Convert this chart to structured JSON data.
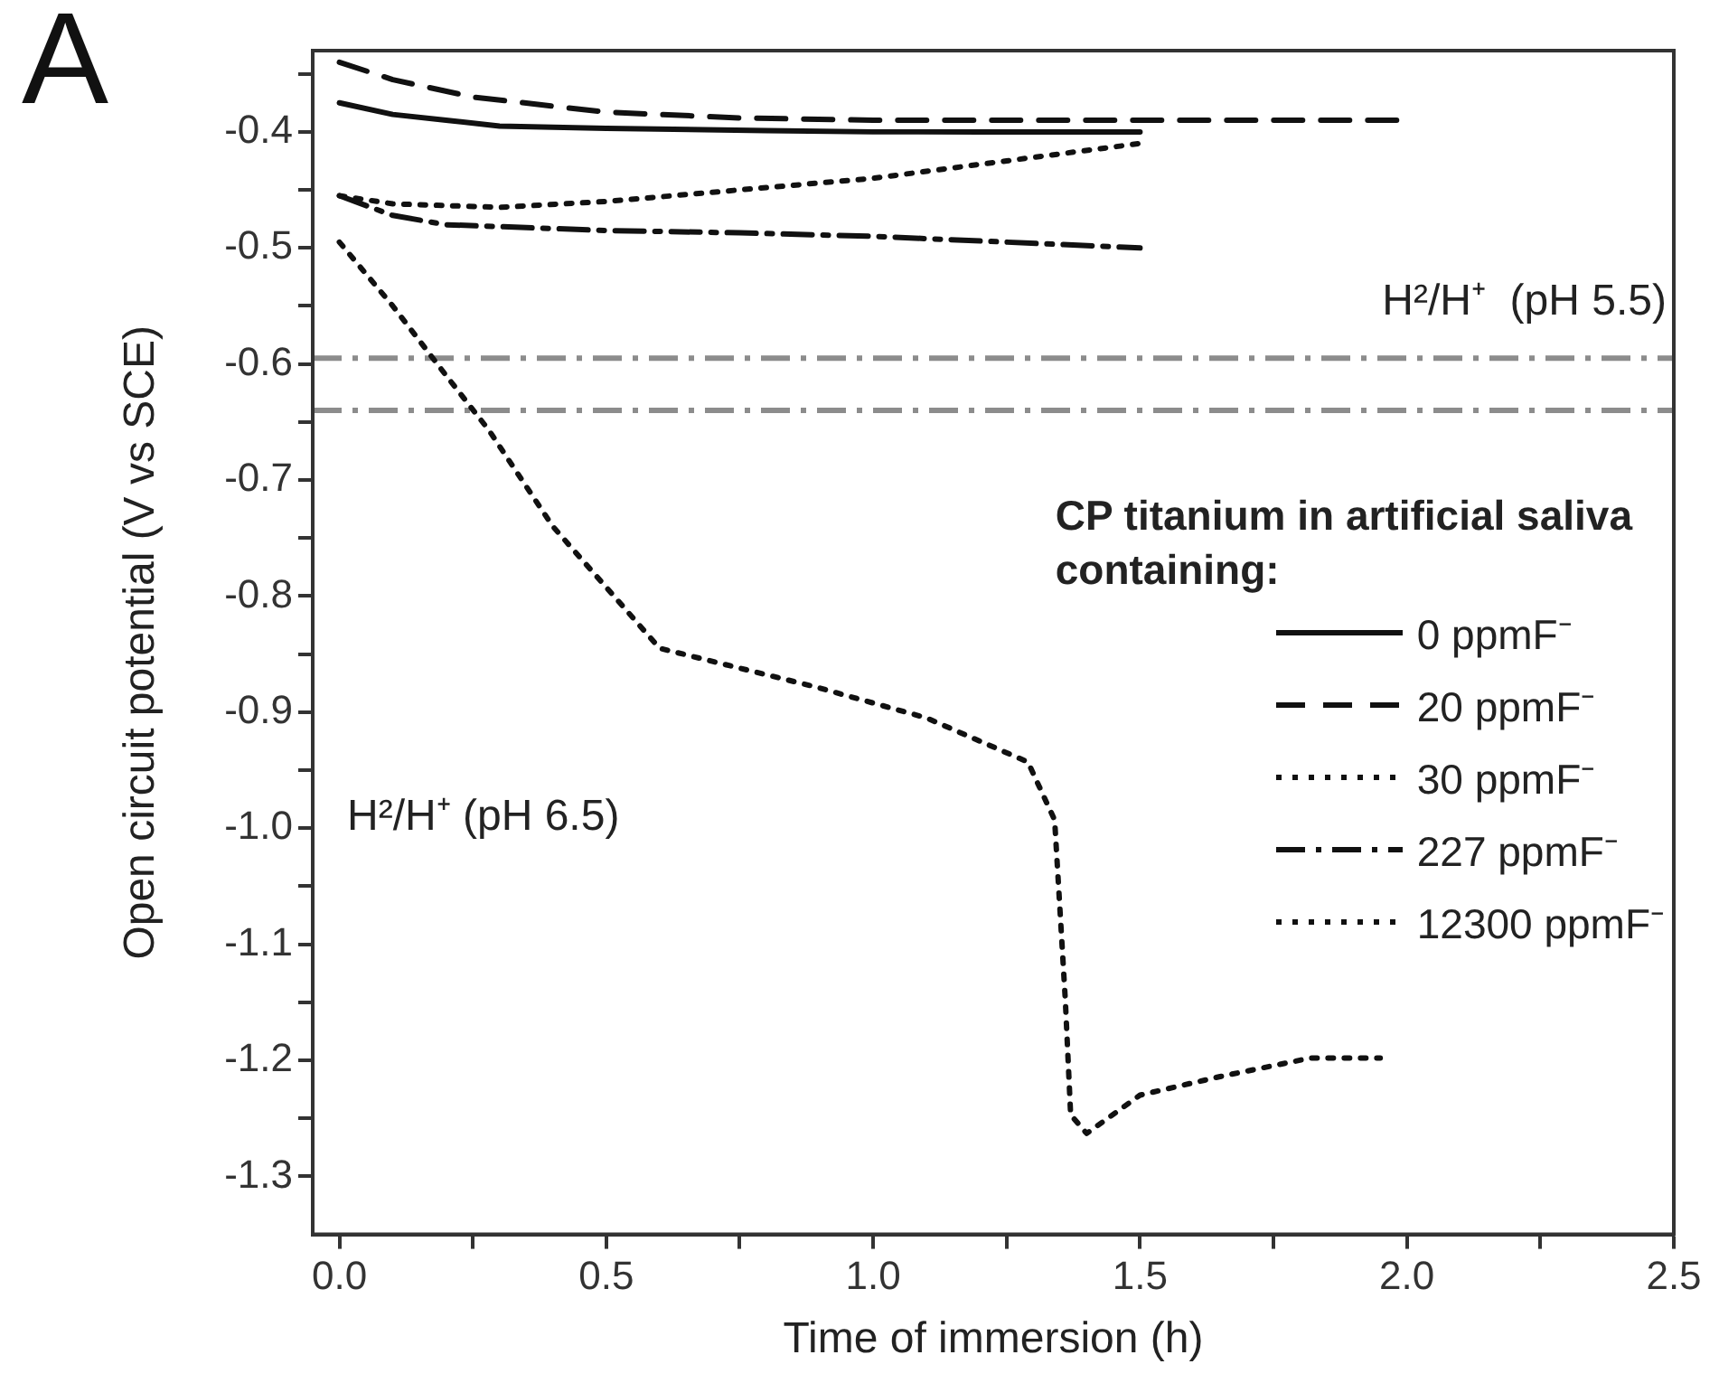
{
  "chart_data": {
    "type": "line",
    "xlabel": "Time of immersion (h)",
    "ylabel": "Open circuit potential (V vs SCE)",
    "legend_title": "CP titanium in artificial saliva containing:",
    "legend": "right",
    "grid": false,
    "marker": "none",
    "xlim": [
      -0.05,
      2.5
    ],
    "xticks": [
      {
        "value": 0,
        "label": "0.0"
      },
      {
        "value": 0.25,
        "label": null
      },
      {
        "value": 0.5,
        "label": "0.5"
      },
      {
        "value": 0.75,
        "label": null
      },
      {
        "value": 1,
        "label": "1.0"
      },
      {
        "value": 1.25,
        "label": null
      },
      {
        "value": 1.5,
        "label": "1.5"
      },
      {
        "value": 1.75,
        "label": null
      },
      {
        "value": 2,
        "label": "2.0"
      },
      {
        "value": 2.25,
        "label": null
      },
      {
        "value": 2.5,
        "label": "2.5"
      }
    ],
    "ylim": [
      -1.35,
      -0.33
    ],
    "yticks": [
      {
        "value": -0.35,
        "label": null
      },
      {
        "value": -0.4,
        "label": "-0.4"
      },
      {
        "value": -0.45,
        "label": null
      },
      {
        "value": -0.5,
        "label": "-0.5"
      },
      {
        "value": -0.55,
        "label": null
      },
      {
        "value": -0.6,
        "label": "-0.6"
      },
      {
        "value": -0.65,
        "label": null
      },
      {
        "value": -0.7,
        "label": "-0.7"
      },
      {
        "value": -0.75,
        "label": null
      },
      {
        "value": -0.8,
        "label": "-0.8"
      },
      {
        "value": -0.85,
        "label": null
      },
      {
        "value": -0.9,
        "label": "-0.9"
      },
      {
        "value": -0.95,
        "label": null
      },
      {
        "value": -1.0,
        "label": "-1.0"
      },
      {
        "value": -1.05,
        "label": null
      },
      {
        "value": -1.1,
        "label": "-1.1"
      },
      {
        "value": -1.15,
        "label": null
      },
      {
        "value": -1.2,
        "label": "-1.2"
      },
      {
        "value": -1.25,
        "label": null
      },
      {
        "value": -1.3,
        "label": "-1.3"
      }
    ],
    "series": [
      {
        "name": "0 ppmF⁻",
        "color": "#111111",
        "line_style": "solid",
        "x": [
          0,
          0.1,
          0.2,
          0.3,
          0.5,
          0.8,
          1.0,
          1.2,
          1.5
        ],
        "values": [
          -0.375,
          -0.385,
          -0.39,
          -0.395,
          -0.397,
          -0.399,
          -0.4,
          -0.4,
          -0.4
        ]
      },
      {
        "name": "20 ppmF⁻",
        "color": "#111111",
        "line_style": "dashed",
        "x": [
          0,
          0.1,
          0.25,
          0.5,
          0.75,
          1.0,
          1.5,
          2.0
        ],
        "values": [
          -0.34,
          -0.355,
          -0.37,
          -0.383,
          -0.388,
          -0.39,
          -0.39,
          -0.39
        ]
      },
      {
        "name": "30 ppmF⁻",
        "color": "#111111",
        "line_style": "dotted",
        "x": [
          0,
          0.1,
          0.3,
          0.5,
          0.75,
          1.0,
          1.25,
          1.5
        ],
        "values": [
          -0.455,
          -0.462,
          -0.465,
          -0.46,
          -0.45,
          -0.44,
          -0.425,
          -0.41
        ]
      },
      {
        "name": "227 ppmF⁻",
        "color": "#111111",
        "line_style": "dashdot",
        "x": [
          0,
          0.1,
          0.2,
          0.5,
          0.75,
          1.0,
          1.25,
          1.5
        ],
        "values": [
          -0.455,
          -0.472,
          -0.48,
          -0.485,
          -0.487,
          -0.49,
          -0.495,
          -0.5
        ]
      },
      {
        "name": "12300 ppmF⁻",
        "color": "#111111",
        "line_style": "dotted",
        "x": [
          0,
          0.1,
          0.2,
          0.28,
          0.4,
          0.6,
          0.89,
          1.1,
          1.29,
          1.34,
          1.36,
          1.37,
          1.4,
          1.5,
          1.65,
          1.82,
          1.95
        ],
        "values": [
          -0.495,
          -0.55,
          -0.61,
          -0.657,
          -0.74,
          -0.845,
          -0.878,
          -0.905,
          -0.943,
          -0.993,
          -1.148,
          -1.247,
          -1.263,
          -1.23,
          -1.214,
          -1.198,
          -1.198
        ]
      }
    ],
    "ref_lines": [
      {
        "axis": "y",
        "value": -0.595,
        "label": "H²/H⁺  (pH 5.5)",
        "color": "#8c8c8c",
        "line_style": "dashdot"
      },
      {
        "axis": "y",
        "value": -0.64,
        "color": "#8c8c8c",
        "line_style": "dashdot"
      }
    ],
    "annotations": [
      "A",
      "H²/H⁺ (pH 6.5)"
    ]
  }
}
